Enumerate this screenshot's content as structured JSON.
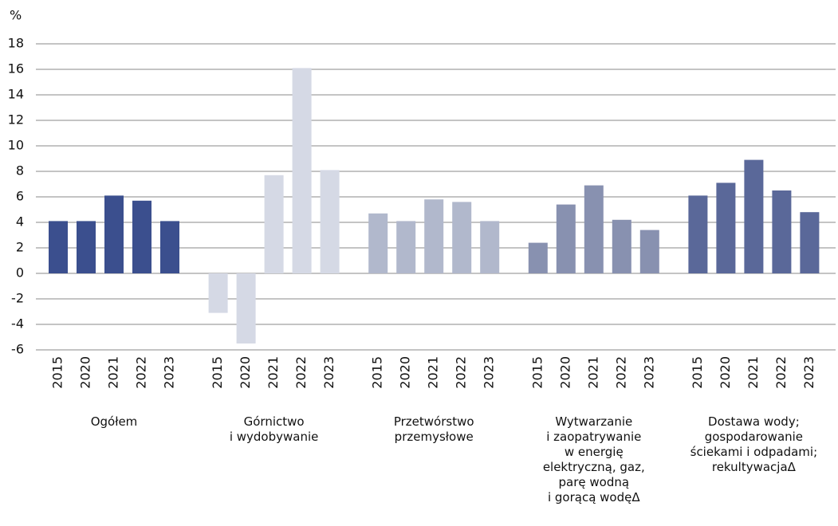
{
  "chart_data": {
    "type": "bar",
    "y_label": "%",
    "ylim": [
      -6,
      18
    ],
    "yticks": [
      -6,
      -4,
      -2,
      0,
      2,
      4,
      6,
      8,
      10,
      12,
      14,
      16,
      18
    ],
    "grid": true,
    "groups": [
      {
        "name": "Ogółem",
        "color": "#3b4f8e",
        "categories": [
          "2015",
          "2020",
          "2021",
          "2022",
          "2023"
        ],
        "values": [
          4.1,
          4.1,
          6.1,
          5.7,
          4.1
        ]
      },
      {
        "name": "Górnictwo\ni wydobywanie",
        "color": "#d5d9e5",
        "categories": [
          "2015",
          "2020",
          "2021",
          "2022",
          "2023"
        ],
        "values": [
          -3.1,
          -5.5,
          7.7,
          16.1,
          8.1
        ]
      },
      {
        "name": "Przetwórstwo\nprzemysłowe",
        "color": "#b1b8cc",
        "categories": [
          "2015",
          "2020",
          "2021",
          "2022",
          "2023"
        ],
        "values": [
          4.7,
          4.1,
          5.8,
          5.6,
          4.1
        ]
      },
      {
        "name": "Wytwarzanie\ni zaopatrywanie\nw energię\nelektryczną, gaz,\nparę wodną\ni gorącą wodęΔ",
        "color": "#8891b0",
        "categories": [
          "2015",
          "2020",
          "2021",
          "2022",
          "2023"
        ],
        "values": [
          2.4,
          5.4,
          6.9,
          4.2,
          3.4
        ]
      },
      {
        "name": "Dostawa wody;\ngospodarowanie\nściekami i odpadami;\nrekultywacjaΔ",
        "color": "#5a6899",
        "categories": [
          "2015",
          "2020",
          "2021",
          "2022",
          "2023"
        ],
        "values": [
          6.1,
          7.1,
          8.9,
          6.5,
          4.8
        ]
      }
    ]
  }
}
